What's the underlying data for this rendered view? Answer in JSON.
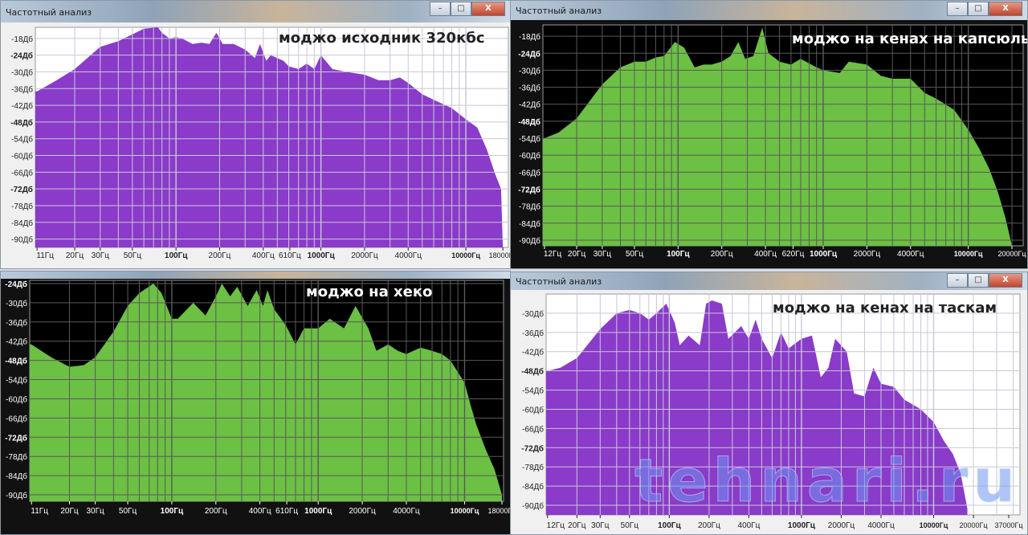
{
  "window_title": "Частотный анализ",
  "window_buttons": {
    "minimize": "–",
    "maximize": "□",
    "close": "X"
  },
  "watermark": "tehnari.ru",
  "chart_data": [
    {
      "type": "area",
      "title": "моджо исходник 320кбс",
      "background": "#ffffff",
      "grid_color": "#c8c8d8",
      "fill": "#8a3bc9",
      "text_color": "#222222",
      "x_scale": "log",
      "xlim": [
        10.7,
        19650
      ],
      "ylim": [
        -93,
        -14
      ],
      "grid": true,
      "y_ticks": [
        -18,
        -24,
        -30,
        -36,
        -42,
        -48,
        -54,
        -60,
        -66,
        -72,
        -78,
        -84,
        -90
      ],
      "y_tick_labels": [
        "-18Дб",
        "-24Дб",
        "-30Дб",
        "-36Дб",
        "-42Дб",
        "-48Дб",
        "-54Дб",
        "-60Дб",
        "-66Дб",
        "-72Дб",
        "-78Дб",
        "-84Дб",
        "-90Дб"
      ],
      "x_ticks": [
        11,
        20,
        30,
        50,
        100,
        200,
        400,
        610,
        1000,
        2000,
        4000,
        10000,
        18000
      ],
      "x_tick_labels": [
        "11Гц",
        "20Гц",
        "30Гц",
        "50Гц",
        "100Гц",
        "200Гц",
        "400Гц",
        "610Гц",
        "1000Гц",
        "2000Гц",
        "4000Гц",
        "10000Гц",
        "18000Гц"
      ],
      "points": [
        [
          11,
          -37
        ],
        [
          15,
          -33
        ],
        [
          20,
          -29
        ],
        [
          30,
          -21
        ],
        [
          40,
          -19
        ],
        [
          50,
          -16.5
        ],
        [
          60,
          -14.5
        ],
        [
          75,
          -14
        ],
        [
          80,
          -16
        ],
        [
          90,
          -18
        ],
        [
          100,
          -17.5
        ],
        [
          110,
          -18
        ],
        [
          130,
          -20
        ],
        [
          150,
          -19.5
        ],
        [
          170,
          -20
        ],
        [
          190,
          -16
        ],
        [
          210,
          -20
        ],
        [
          250,
          -20
        ],
        [
          300,
          -22
        ],
        [
          350,
          -25
        ],
        [
          380,
          -20
        ],
        [
          420,
          -26
        ],
        [
          450,
          -24
        ],
        [
          500,
          -25
        ],
        [
          550,
          -26
        ],
        [
          600,
          -28
        ],
        [
          700,
          -29
        ],
        [
          800,
          -27
        ],
        [
          900,
          -29
        ],
        [
          1000,
          -24
        ],
        [
          1200,
          -29
        ],
        [
          1500,
          -30
        ],
        [
          2000,
          -31
        ],
        [
          2500,
          -33
        ],
        [
          3000,
          -33
        ],
        [
          3500,
          -32
        ],
        [
          4000,
          -34
        ],
        [
          5000,
          -38
        ],
        [
          6000,
          -40
        ],
        [
          8000,
          -43
        ],
        [
          10000,
          -47
        ],
        [
          12000,
          -50
        ],
        [
          14000,
          -58
        ],
        [
          16000,
          -67
        ],
        [
          17500,
          -72
        ],
        [
          18000,
          -95
        ]
      ]
    },
    {
      "type": "area",
      "title": "моджо на кенах на капсюль",
      "background": "#000000",
      "grid_color": "#5a5a5a",
      "fill": "#6cc043",
      "text_color": "#ffffff",
      "x_scale": "log",
      "xlim": [
        11.7,
        23900
      ],
      "ylim": [
        -92,
        -14
      ],
      "grid": true,
      "y_ticks": [
        -18,
        -24,
        -30,
        -36,
        -42,
        -48,
        -54,
        -60,
        -66,
        -72,
        -78,
        -84,
        -90
      ],
      "y_tick_labels": [
        "-18Дб",
        "-24Дб",
        "-30Дб",
        "-36Дб",
        "-42Дб",
        "-48Дб",
        "-54Дб",
        "-60Дб",
        "-66Дб",
        "-72Дб",
        "-78Дб",
        "-84Дб",
        "-90Дб"
      ],
      "x_ticks": [
        12,
        20,
        30,
        50,
        100,
        200,
        400,
        620,
        1000,
        2000,
        4000,
        10000,
        20000
      ],
      "x_tick_labels": [
        "12Гц",
        "20Гц",
        "30Гц",
        "50Гц",
        "100Гц",
        "200Гц",
        "400Гц",
        "620Гц",
        "1000Гц",
        "2000Гц",
        "4000Гц",
        "10000Гц",
        "20000Гц"
      ],
      "points": [
        [
          12,
          -54
        ],
        [
          15,
          -52
        ],
        [
          20,
          -47
        ],
        [
          30,
          -35
        ],
        [
          40,
          -29
        ],
        [
          50,
          -27
        ],
        [
          60,
          -27
        ],
        [
          70,
          -25.5
        ],
        [
          80,
          -25
        ],
        [
          95,
          -20
        ],
        [
          110,
          -22
        ],
        [
          130,
          -29
        ],
        [
          150,
          -28
        ],
        [
          170,
          -28
        ],
        [
          200,
          -27
        ],
        [
          230,
          -25
        ],
        [
          260,
          -20
        ],
        [
          290,
          -26
        ],
        [
          330,
          -25
        ],
        [
          380,
          -15
        ],
        [
          420,
          -24
        ],
        [
          500,
          -27
        ],
        [
          600,
          -28
        ],
        [
          700,
          -26
        ],
        [
          900,
          -29
        ],
        [
          1000,
          -30
        ],
        [
          1300,
          -31
        ],
        [
          1500,
          -27
        ],
        [
          2000,
          -28
        ],
        [
          2500,
          -32
        ],
        [
          3000,
          -33
        ],
        [
          4000,
          -33
        ],
        [
          5000,
          -38
        ],
        [
          6000,
          -40
        ],
        [
          8000,
          -44
        ],
        [
          10000,
          -51
        ],
        [
          12000,
          -58
        ],
        [
          14000,
          -65
        ],
        [
          16000,
          -73
        ],
        [
          18000,
          -82
        ],
        [
          20000,
          -92
        ]
      ]
    },
    {
      "type": "area",
      "title": "моджо на хеко",
      "background": "#000000",
      "grid_color": "#5a5a5a",
      "fill": "#6cc043",
      "text_color": "#ffffff",
      "x_scale": "log",
      "xlim": [
        10.7,
        18460
      ],
      "ylim": [
        -92,
        -23
      ],
      "grid": true,
      "y_ticks": [
        -24,
        -30,
        -36,
        -42,
        -48,
        -54,
        -60,
        -66,
        -72,
        -78,
        -84,
        -90
      ],
      "y_tick_labels": [
        "-24Дб",
        "-30Дб",
        "-36Дб",
        "-42Дб",
        "-48Дб",
        "-54Дб",
        "-60Дб",
        "-66Дб",
        "-72Дб",
        "-78Дб",
        "-84Дб",
        "-90Дб"
      ],
      "x_ticks": [
        11,
        20,
        30,
        50,
        100,
        200,
        400,
        610,
        1000,
        2000,
        4000,
        10000,
        18000
      ],
      "x_tick_labels": [
        "11Гц",
        "20Гц",
        "30Гц",
        "50Гц",
        "100Гц",
        "200Гц",
        "400Гц",
        "610Гц",
        "1000Гц",
        "2000Гц",
        "4000Гц",
        "10000Гц",
        "18000Гц"
      ],
      "points": [
        [
          11,
          -43
        ],
        [
          15,
          -47
        ],
        [
          20,
          -50
        ],
        [
          25,
          -49.5
        ],
        [
          30,
          -47
        ],
        [
          40,
          -39
        ],
        [
          50,
          -31
        ],
        [
          60,
          -27
        ],
        [
          75,
          -24
        ],
        [
          85,
          -27
        ],
        [
          100,
          -35
        ],
        [
          110,
          -35
        ],
        [
          140,
          -30
        ],
        [
          170,
          -34
        ],
        [
          200,
          -28
        ],
        [
          220,
          -24
        ],
        [
          250,
          -28
        ],
        [
          280,
          -25
        ],
        [
          330,
          -31
        ],
        [
          380,
          -26
        ],
        [
          420,
          -31
        ],
        [
          450,
          -26
        ],
        [
          500,
          -32
        ],
        [
          600,
          -37
        ],
        [
          700,
          -43
        ],
        [
          800,
          -38
        ],
        [
          1000,
          -38
        ],
        [
          1200,
          -35
        ],
        [
          1500,
          -38
        ],
        [
          1800,
          -31
        ],
        [
          2200,
          -38
        ],
        [
          2500,
          -45
        ],
        [
          3000,
          -43
        ],
        [
          3500,
          -45
        ],
        [
          4000,
          -46
        ],
        [
          5000,
          -44
        ],
        [
          6000,
          -45
        ],
        [
          7000,
          -46
        ],
        [
          8000,
          -48
        ],
        [
          10000,
          -55
        ],
        [
          11000,
          -62
        ],
        [
          12000,
          -68
        ],
        [
          14000,
          -76
        ],
        [
          16000,
          -82
        ],
        [
          18000,
          -90
        ]
      ]
    },
    {
      "type": "area",
      "title": "моджо на кенах на таскам",
      "background": "#ffffff",
      "grid_color": "#c8c8d8",
      "fill": "#8a3bc9",
      "text_color": "#222222",
      "x_scale": "log",
      "xlim": [
        11.7,
        45000
      ],
      "ylim": [
        -93,
        -24
      ],
      "grid": true,
      "y_ticks": [
        -30,
        -36,
        -42,
        -48,
        -54,
        -60,
        -66,
        -72,
        -78,
        -84,
        -90
      ],
      "y_tick_labels": [
        "-30Дб",
        "-36Дб",
        "-42Дб",
        "-48Дб",
        "-54Дб",
        "-60Дб",
        "-66Дб",
        "-72Дб",
        "-78Дб",
        "-84Дб",
        "-90Дб"
      ],
      "x_ticks": [
        12,
        20,
        30,
        50,
        100,
        200,
        400,
        1000,
        2000,
        4000,
        10000,
        20000,
        37000
      ],
      "x_tick_labels": [
        "12Гц",
        "20Гц",
        "30Гц",
        "50Гц",
        "100Гц",
        "200Гц",
        "400Гц",
        "1000Гц",
        "2000Гц",
        "4000Гц",
        "10000Гц",
        "20000Гц",
        "37000Гц"
      ],
      "points": [
        [
          12,
          -48
        ],
        [
          15,
          -47
        ],
        [
          20,
          -44
        ],
        [
          30,
          -35
        ],
        [
          40,
          -30
        ],
        [
          50,
          -29
        ],
        [
          60,
          -30
        ],
        [
          70,
          -32
        ],
        [
          80,
          -30
        ],
        [
          95,
          -27
        ],
        [
          110,
          -33
        ],
        [
          120,
          -40
        ],
        [
          140,
          -37
        ],
        [
          170,
          -40
        ],
        [
          190,
          -27
        ],
        [
          210,
          -26
        ],
        [
          250,
          -27
        ],
        [
          280,
          -38
        ],
        [
          350,
          -34
        ],
        [
          400,
          -38
        ],
        [
          450,
          -32
        ],
        [
          500,
          -38
        ],
        [
          600,
          -44
        ],
        [
          700,
          -36
        ],
        [
          800,
          -41
        ],
        [
          1000,
          -38
        ],
        [
          1200,
          -37
        ],
        [
          1400,
          -50
        ],
        [
          1600,
          -47
        ],
        [
          1800,
          -38
        ],
        [
          2200,
          -42
        ],
        [
          2500,
          -55
        ],
        [
          3000,
          -56
        ],
        [
          3500,
          -47
        ],
        [
          4000,
          -52
        ],
        [
          5000,
          -53
        ],
        [
          6000,
          -57
        ],
        [
          8000,
          -60
        ],
        [
          10000,
          -64
        ],
        [
          12000,
          -70
        ],
        [
          14000,
          -74
        ],
        [
          16000,
          -80
        ],
        [
          18000,
          -91
        ]
      ]
    }
  ]
}
